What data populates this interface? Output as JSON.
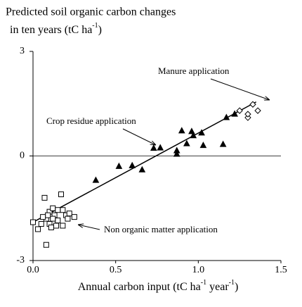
{
  "chart_data": {
    "type": "scatter",
    "title": "Predicted soil organic carbon changes",
    "ylabel_parts": [
      "in ten years (tC ha",
      "-1",
      ")"
    ],
    "xlabel_parts": [
      "Annual carbon input (tC ha",
      "-1",
      " year",
      "-1",
      ")"
    ],
    "xlim": [
      0,
      1.5
    ],
    "ylim": [
      -3,
      3
    ],
    "xticks": [
      {
        "value": 0,
        "label": "0.0"
      },
      {
        "value": 0.5,
        "label": "0.5"
      },
      {
        "value": 1,
        "label": "1.0"
      },
      {
        "value": 1.5,
        "label": "1.5"
      }
    ],
    "yticks": [
      -3,
      0,
      3
    ],
    "zero_line": true,
    "series": [
      {
        "name": "Non organic matter application",
        "marker": "square",
        "filled": false,
        "color": "#000000",
        "x": [
          0.0,
          0.03,
          0.07,
          0.08,
          0.1,
          0.12,
          0.13,
          0.15,
          0.17,
          0.18,
          0.2,
          0.22,
          0.25,
          0.08,
          0.05,
          0.1,
          0.14,
          0.18,
          0.12,
          0.09,
          0.15,
          0.21,
          0.06,
          0.11
        ],
        "values": [
          -1.9,
          -2.1,
          -1.2,
          -1.8,
          -1.6,
          -1.5,
          -1.7,
          -1.85,
          -1.1,
          -1.55,
          -1.7,
          -1.65,
          -1.75,
          -2.55,
          -1.95,
          -1.95,
          -2.0,
          -2.0,
          -1.8,
          -1.7,
          -1.55,
          -1.8,
          -1.75,
          -2.05
        ]
      },
      {
        "name": "Crop residue application",
        "marker": "triangle",
        "filled": true,
        "color": "#000000",
        "x": [
          0.38,
          0.52,
          0.6,
          0.66,
          0.73,
          0.77,
          0.87,
          0.87,
          0.9,
          0.93,
          0.96,
          0.97,
          1.02,
          1.03,
          1.15,
          1.17,
          1.22
        ],
        "values": [
          -0.7,
          -0.3,
          -0.28,
          -0.4,
          0.22,
          0.23,
          0.05,
          0.15,
          0.72,
          0.35,
          0.7,
          0.58,
          0.66,
          0.3,
          0.33,
          1.1,
          1.2
        ]
      },
      {
        "name": "Manure application",
        "marker": "diamond",
        "filled": false,
        "color": "#000000",
        "x": [
          1.25,
          1.3,
          1.3,
          1.33,
          1.36
        ],
        "values": [
          1.3,
          1.1,
          1.2,
          1.48,
          1.3
        ]
      }
    ],
    "fit": {
      "x": [
        0.0,
        1.35
      ],
      "values": [
        -1.9,
        1.55
      ]
    }
  }
}
